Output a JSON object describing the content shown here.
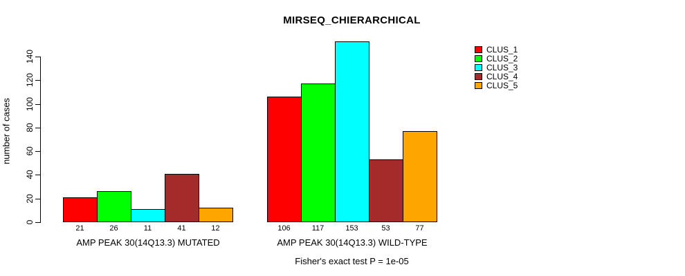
{
  "chart_data": {
    "type": "bar",
    "title": "MIRSEQ_CHIERARCHICAL",
    "ylabel": "number of cases",
    "footer": "Fisher's exact test P = 1e-05",
    "ylim": [
      0,
      153
    ],
    "yticks": [
      0,
      20,
      40,
      60,
      80,
      100,
      120,
      140
    ],
    "grid": false,
    "legend_position": "top-right",
    "bar_value_labels": true,
    "series": [
      {
        "name": "CLUS_1",
        "color": "#ff0000"
      },
      {
        "name": "CLUS_2",
        "color": "#00ff00"
      },
      {
        "name": "CLUS_3",
        "color": "#00ffff"
      },
      {
        "name": "CLUS_4",
        "color": "#a52a2a"
      },
      {
        "name": "CLUS_5",
        "color": "#ffa500"
      }
    ],
    "groups": [
      {
        "label": "AMP PEAK 30(14Q13.3) MUTATED",
        "values": [
          21,
          26,
          11,
          41,
          12
        ]
      },
      {
        "label": "AMP PEAK 30(14Q13.3) WILD-TYPE",
        "values": [
          106,
          117,
          153,
          53,
          77
        ]
      }
    ]
  }
}
